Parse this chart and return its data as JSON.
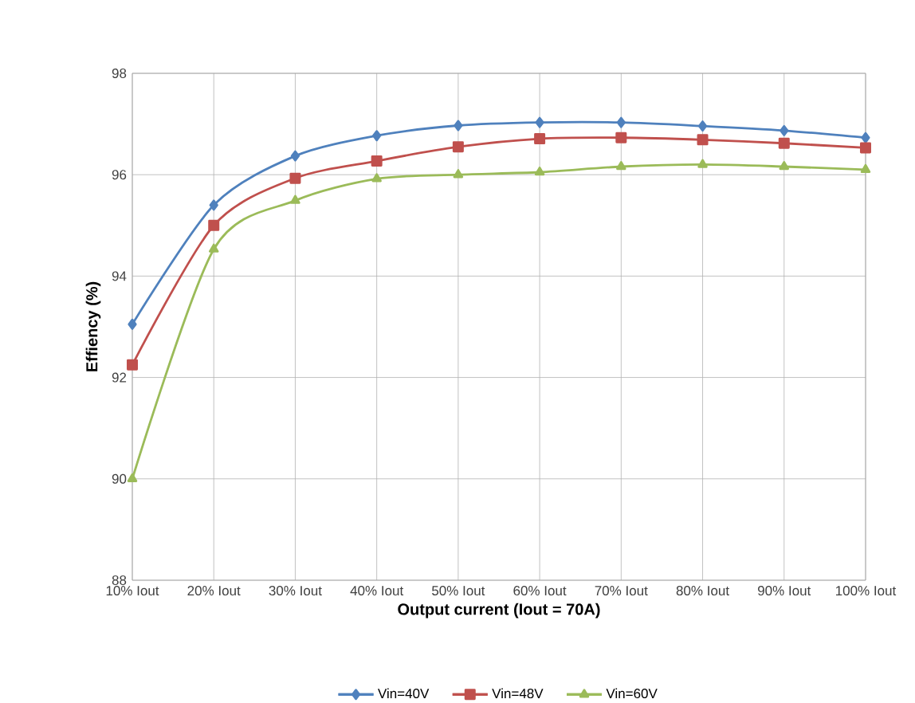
{
  "chart_data": {
    "type": "line",
    "xlabel": "Output current (Iout = 70A)",
    "ylabel": "Effiency (%)",
    "categories": [
      "10% Iout",
      "20% Iout",
      "30% Iout",
      "40% Iout",
      "50% Iout",
      "60% Iout",
      "70% Iout",
      "80% Iout",
      "90% Iout",
      "100% Iout"
    ],
    "series": [
      {
        "name": "Vin=40V",
        "color": "#4f81bd",
        "marker": "diamond",
        "values": [
          93.05,
          95.4,
          96.37,
          96.77,
          96.97,
          97.03,
          97.03,
          96.96,
          96.87,
          96.73
        ]
      },
      {
        "name": "Vin=48V",
        "color": "#c0504d",
        "marker": "square",
        "values": [
          92.25,
          95.0,
          95.93,
          96.27,
          96.55,
          96.71,
          96.73,
          96.69,
          96.62,
          96.53
        ]
      },
      {
        "name": "Vin=60V",
        "color": "#9bbb59",
        "marker": "triangle",
        "values": [
          90.0,
          94.53,
          95.49,
          95.92,
          96.0,
          96.05,
          96.16,
          96.2,
          96.16,
          96.1
        ]
      }
    ],
    "ylim": [
      88,
      98
    ],
    "yticks": [
      88,
      90,
      92,
      94,
      96,
      98
    ],
    "grid": true,
    "legend": "bottom",
    "line_style": "solid"
  }
}
